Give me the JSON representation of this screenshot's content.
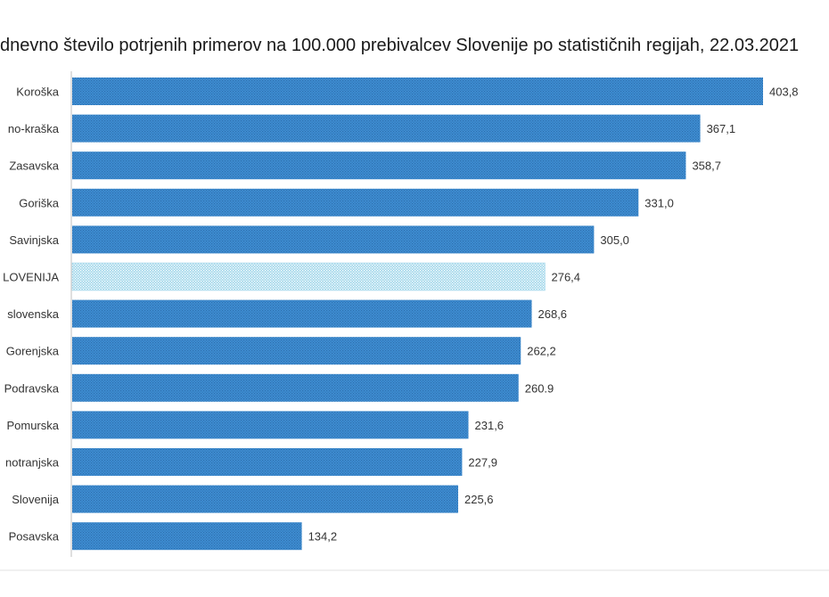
{
  "chart_data": {
    "type": "bar",
    "orientation": "horizontal",
    "title": "dnevno število potrjenih primerov na 100.000 prebivalcev Slovenije po statističnih regijah, 22.03.2021",
    "categories": [
      "Koroška",
      "no-kraška",
      "Zasavska",
      "Goriška",
      "Savinjska",
      "LOVENIJA",
      "slovenska",
      "Gorenjska",
      "Podravska",
      "Pomurska",
      "notranjska",
      "Slovenija",
      "Posavska"
    ],
    "values": [
      403.8,
      367.1,
      358.7,
      331.0,
      305.0,
      276.4,
      268.6,
      262.2,
      260.9,
      231.6,
      227.9,
      225.6,
      134.2
    ],
    "value_labels": [
      "403,8",
      "367,1",
      "358,7",
      "331,0",
      "305,0",
      "276,4",
      "268,6",
      "262,2",
      "260.9",
      "231,6",
      "227,9",
      "225,6",
      "134,2"
    ],
    "highlight_index": 5,
    "xlim": [
      0,
      420
    ],
    "grid": false,
    "colors": {
      "bar": "#3f8fd4",
      "bar_dot": "#2d6fae",
      "highlight": "#9fd6ea",
      "highlight_dot": "#ffffff",
      "axis": "#bfbfbf"
    }
  }
}
